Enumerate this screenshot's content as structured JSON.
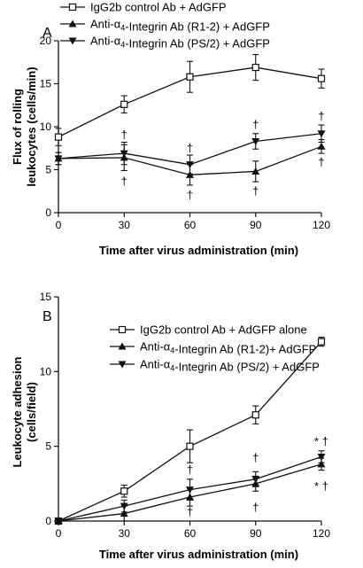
{
  "chart_data": [
    {
      "panel": "A",
      "type": "line",
      "xlabel": "Time after virus administration (min)",
      "ylabel": [
        "Flux of rolling",
        "leukocytes (cells/min)"
      ],
      "x": [
        0,
        30,
        60,
        90,
        120
      ],
      "xticks": [
        "0",
        "30",
        "60",
        "90",
        "120"
      ],
      "yticks": [
        "0",
        "5",
        "10",
        "15",
        "20"
      ],
      "xlim": [
        0,
        120
      ],
      "ylim": [
        0,
        20
      ],
      "legend_position": "top",
      "series": [
        {
          "name": "IgG2b control Ab + AdGFP",
          "marker": "open-square",
          "values": [
            8.8,
            12.6,
            15.8,
            16.9,
            15.6
          ],
          "errors": [
            1.0,
            1.0,
            1.8,
            1.5,
            1.1
          ]
        },
        {
          "name": "Anti-α4-Integrin Ab (R1-2) + AdGFP",
          "marker": "filled-triangle-up",
          "values": [
            6.3,
            6.4,
            4.4,
            4.8,
            7.7
          ],
          "errors": [
            0.7,
            1.5,
            1.2,
            1.2,
            0.8
          ]
        },
        {
          "name": "Anti-α4-Integrin Ab (PS/2) + AdGFP",
          "marker": "filled-triangle-down",
          "values": [
            6.3,
            6.9,
            5.6,
            8.3,
            9.2
          ],
          "errors": [
            0.7,
            1.3,
            1.1,
            0.9,
            1.0
          ]
        }
      ],
      "annotations": [
        {
          "text": "†",
          "x": 30,
          "y": 9.0
        },
        {
          "text": "†",
          "x": 30,
          "y": 3.6
        },
        {
          "text": "†",
          "x": 60,
          "y": 7.5
        },
        {
          "text": "†",
          "x": 60,
          "y": 2.0
        },
        {
          "text": "†",
          "x": 90,
          "y": 10.2
        },
        {
          "text": "†",
          "x": 90,
          "y": 2.5
        },
        {
          "text": "†",
          "x": 120,
          "y": 11.2
        },
        {
          "text": "†",
          "x": 120,
          "y": 5.8
        }
      ]
    },
    {
      "panel": "B",
      "type": "line",
      "xlabel": "Time after virus administration (min)",
      "ylabel": [
        "Leukocyte adhesion",
        "(cells/field)"
      ],
      "x": [
        0,
        30,
        60,
        90,
        120
      ],
      "xticks": [
        "0",
        "30",
        "60",
        "90",
        "120"
      ],
      "yticks": [
        "0",
        "5",
        "10",
        "15"
      ],
      "xlim": [
        0,
        120
      ],
      "ylim": [
        0,
        15
      ],
      "legend_position": "top",
      "series": [
        {
          "name": "IgG2b control Ab + AdGFP alone",
          "marker": "open-square",
          "values": [
            0,
            2.0,
            5.0,
            7.1,
            12.0
          ],
          "errors": [
            0.1,
            0.4,
            1.1,
            0.6,
            0.3
          ]
        },
        {
          "name": "Anti-α4-Integrin Ab (R1-2)+ AdGFP",
          "marker": "filled-triangle-up",
          "values": [
            0,
            0.5,
            1.6,
            2.5,
            3.8
          ],
          "errors": [
            0.1,
            0.5,
            0.6,
            0.5,
            0.4
          ]
        },
        {
          "name": "Anti-α4-Integrin Ab (PS/2) + AdGFP",
          "marker": "filled-triangle-down",
          "values": [
            0,
            1.0,
            2.1,
            2.8,
            4.3
          ],
          "errors": [
            0.1,
            0.4,
            0.7,
            0.5,
            0.4
          ]
        }
      ],
      "annotations": [
        {
          "text": "* †",
          "x": 120,
          "y": 5.3
        },
        {
          "text": "* †",
          "x": 120,
          "y": 2.3
        },
        {
          "text": "†",
          "x": 60,
          "y": 3.4
        },
        {
          "text": "†",
          "x": 60,
          "y": 0.6
        },
        {
          "text": "†",
          "x": 90,
          "y": 4.2
        },
        {
          "text": "†",
          "x": 90,
          "y": 0.9
        }
      ]
    }
  ]
}
